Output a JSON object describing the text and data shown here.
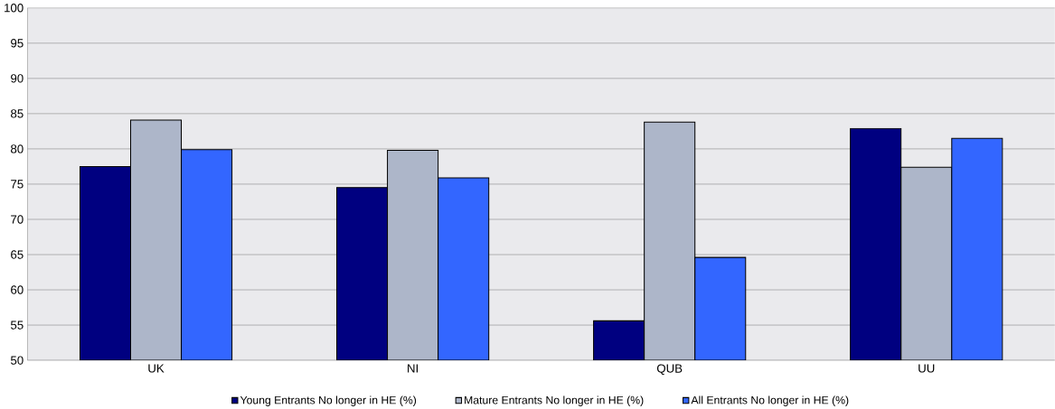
{
  "chart_data": {
    "type": "bar",
    "categories": [
      "UK",
      "NI",
      "QUB",
      "UU"
    ],
    "series": [
      {
        "name": "Young Entrants No longer in HE (%)",
        "color": "#000080",
        "values": [
          77.5,
          74.5,
          55.6,
          82.9
        ]
      },
      {
        "name": "Mature Entrants No longer in HE (%)",
        "color": "#adb6c9",
        "values": [
          84.1,
          79.8,
          83.8,
          77.4
        ]
      },
      {
        "name": "All Entrants No longer in HE (%)",
        "color": "#3366ff",
        "values": [
          79.9,
          75.9,
          64.6,
          81.5
        ]
      }
    ],
    "ylim": [
      50,
      100
    ],
    "yticks": [
      50,
      55,
      60,
      65,
      70,
      75,
      80,
      85,
      90,
      95,
      100
    ],
    "grid": "y",
    "legend": "bottom"
  }
}
